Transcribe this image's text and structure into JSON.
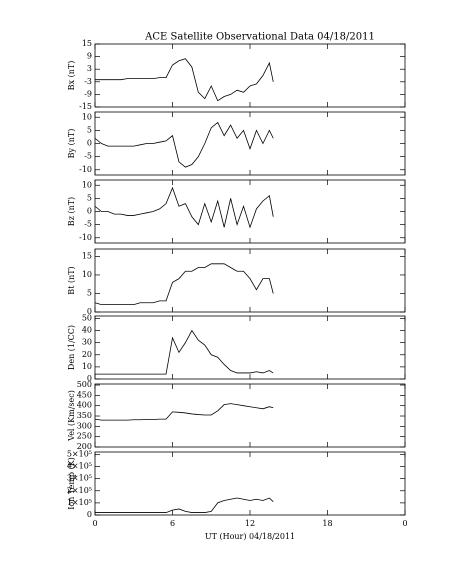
{
  "chart_data": [
    {
      "type": "line",
      "title": "ACE Satellite Observational Data   04/18/2011",
      "ylabel": "Bx (nT)",
      "color": "#000000",
      "x": [
        0,
        0.5,
        1,
        1.5,
        2,
        2.5,
        3,
        3.5,
        4,
        4.5,
        5,
        5.5,
        6,
        6.5,
        7,
        7.5,
        8,
        8.5,
        9,
        9.5,
        10,
        10.5,
        11,
        11.5,
        12,
        12.5,
        13,
        13.5,
        13.8
      ],
      "values": [
        -2,
        -2,
        -2,
        -2,
        -2,
        -1.5,
        -1.5,
        -1.5,
        -1.5,
        -1.5,
        -1,
        -1,
        5,
        7,
        8,
        4,
        -8,
        -11,
        -5,
        -12,
        -10,
        -9,
        -7,
        -8,
        -5,
        -4,
        0,
        6,
        -3
      ],
      "xlim": [
        0,
        24
      ],
      "xticks": [
        0,
        6,
        12,
        18,
        {
          "value": 24,
          "label": "0"
        }
      ],
      "ylim": [
        -15,
        15
      ],
      "yticks": [
        15,
        9,
        3,
        -3,
        -9,
        -15
      ]
    },
    {
      "type": "line",
      "ylabel": "By (nT)",
      "color": "#000000",
      "x": [
        0,
        0.5,
        1,
        1.5,
        2,
        2.5,
        3,
        3.5,
        4,
        4.5,
        5,
        5.5,
        6,
        6.5,
        7,
        7.5,
        8,
        8.5,
        9,
        9.5,
        10,
        10.5,
        11,
        11.5,
        12,
        12.5,
        13,
        13.5,
        13.8
      ],
      "values": [
        2,
        0,
        -1,
        -1,
        -1,
        -1,
        -1,
        -0.5,
        0,
        0,
        0.5,
        1,
        3,
        -7,
        -9,
        -8,
        -5,
        0,
        6,
        8,
        3,
        7,
        2,
        5,
        -2,
        5,
        0,
        5,
        2
      ],
      "xlim": [
        0,
        24
      ],
      "xticks": [
        0,
        6,
        12,
        18,
        {
          "value": 24,
          "label": "0"
        }
      ],
      "ylim": [
        -12,
        12
      ],
      "yticks": [
        10,
        5,
        0,
        -5,
        -10
      ]
    },
    {
      "type": "line",
      "ylabel": "Bz (nT)",
      "color": "#000000",
      "x": [
        0,
        0.5,
        1,
        1.5,
        2,
        2.5,
        3,
        3.5,
        4,
        4.5,
        5,
        5.5,
        6,
        6.5,
        7,
        7.5,
        8,
        8.5,
        9,
        9.5,
        10,
        10.5,
        11,
        11.5,
        12,
        12.5,
        13,
        13.5,
        13.8
      ],
      "values": [
        2,
        0,
        0,
        -1,
        -1,
        -1.5,
        -1.5,
        -1,
        -0.5,
        0,
        1,
        3,
        9,
        2,
        3,
        -2,
        -5,
        3,
        -4,
        4,
        -6,
        5,
        -5,
        2,
        -6,
        1,
        4,
        6,
        -2
      ],
      "xlim": [
        0,
        24
      ],
      "xticks": [
        0,
        6,
        12,
        18,
        {
          "value": 24,
          "label": "0"
        }
      ],
      "ylim": [
        -12,
        12
      ],
      "yticks": [
        10,
        5,
        0,
        -5,
        -10
      ]
    },
    {
      "type": "line",
      "ylabel": "Bt (nT)",
      "color": "#000000",
      "x": [
        0,
        0.5,
        1,
        1.5,
        2,
        2.5,
        3,
        3.5,
        4,
        4.5,
        5,
        5.5,
        6,
        6.5,
        7,
        7.5,
        8,
        8.5,
        9,
        9.5,
        10,
        10.5,
        11,
        11.5,
        12,
        12.5,
        13,
        13.5,
        13.8
      ],
      "values": [
        2.5,
        2,
        2,
        2,
        2,
        2,
        2,
        2.5,
        2.5,
        2.5,
        3,
        3,
        8,
        9,
        11,
        11,
        12,
        12,
        13,
        13,
        13,
        12,
        11,
        11,
        9,
        6,
        9,
        9,
        5
      ],
      "xlim": [
        0,
        24
      ],
      "xticks": [
        0,
        6,
        12,
        18,
        {
          "value": 24,
          "label": "0"
        }
      ],
      "ylim": [
        0,
        17
      ],
      "yticks": [
        0,
        5,
        10,
        15
      ]
    },
    {
      "type": "line",
      "ylabel": "Den (1/CC)",
      "color": "#000000",
      "x": [
        0,
        0.5,
        1,
        1.5,
        2,
        2.5,
        3,
        3.5,
        4,
        4.5,
        5,
        5.5,
        6,
        6.5,
        7,
        7.5,
        8,
        8.5,
        9,
        9.5,
        10,
        10.5,
        11,
        11.5,
        12,
        12.5,
        13,
        13.5,
        13.8
      ],
      "values": [
        4,
        4,
        4,
        4,
        4,
        4,
        4,
        4,
        4,
        4,
        4,
        4,
        34,
        22,
        30,
        40,
        32,
        28,
        20,
        18,
        12,
        7,
        5,
        5,
        5,
        6,
        5,
        7,
        5
      ],
      "xlim": [
        0,
        24
      ],
      "xticks": [
        0,
        6,
        12,
        18,
        {
          "value": 24,
          "label": "0"
        }
      ],
      "ylim": [
        0,
        52
      ],
      "yticks": [
        0,
        10,
        20,
        30,
        40,
        50
      ]
    },
    {
      "type": "line",
      "ylabel": "Vel (Km/sec)",
      "color": "#000000",
      "x": [
        0,
        0.5,
        1,
        1.5,
        2,
        2.5,
        3,
        3.5,
        4,
        4.5,
        5,
        5.5,
        6,
        6.5,
        7,
        7.5,
        8,
        8.5,
        9,
        9.5,
        10,
        10.5,
        11,
        11.5,
        12,
        12.5,
        13,
        13.5,
        13.8
      ],
      "values": [
        335,
        330,
        330,
        330,
        330,
        330,
        332,
        332,
        333,
        333,
        335,
        335,
        370,
        368,
        365,
        360,
        357,
        355,
        355,
        375,
        405,
        410,
        405,
        400,
        395,
        390,
        385,
        395,
        390
      ],
      "xlim": [
        0,
        24
      ],
      "xticks": [
        0,
        6,
        12,
        18,
        {
          "value": 24,
          "label": "0"
        }
      ],
      "ylim": [
        200,
        505
      ],
      "yticks": [
        200,
        250,
        300,
        350,
        400,
        450,
        500
      ]
    },
    {
      "type": "line",
      "ylabel": "Ion Temp (K)",
      "xlabel": "UT (Hour)   04/18/2011",
      "color": "#000000",
      "x": [
        0,
        0.5,
        1,
        1.5,
        2,
        2.5,
        3,
        3.5,
        4,
        4.5,
        5,
        5.5,
        6,
        6.5,
        7,
        7.5,
        8,
        8.5,
        9,
        9.5,
        10,
        10.5,
        11,
        11.5,
        12,
        12.5,
        13,
        13.5,
        13.8
      ],
      "values": [
        20000,
        20000,
        20000,
        20000,
        20000,
        20000,
        20000,
        20000,
        20000,
        20000,
        20000,
        20000,
        40000,
        50000,
        30000,
        20000,
        20000,
        20000,
        30000,
        100000,
        120000,
        130000,
        140000,
        130000,
        120000,
        130000,
        120000,
        140000,
        110000
      ],
      "xlim": [
        0,
        24
      ],
      "xticks": [
        0,
        6,
        12,
        18,
        {
          "value": 24,
          "label": "0"
        }
      ],
      "ylim": [
        0,
        520000
      ],
      "yticks": [
        0,
        {
          "value": 100000,
          "label": "1×10⁵"
        },
        {
          "value": 200000,
          "label": "2×10⁵"
        },
        {
          "value": 300000,
          "label": "3×10⁵"
        },
        {
          "value": 400000,
          "label": "4×10⁵"
        },
        {
          "value": 500000,
          "label": "5×10⁵"
        }
      ]
    }
  ]
}
